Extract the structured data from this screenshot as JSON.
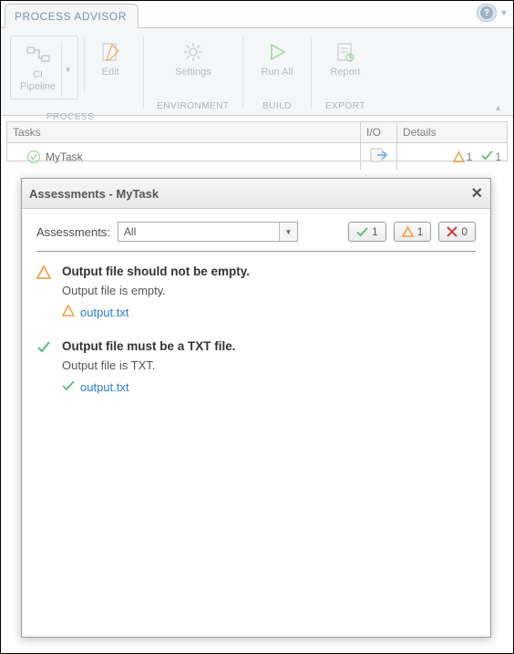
{
  "tab_title": "PROCESS ADVISOR",
  "ribbon": {
    "groups": {
      "process": {
        "label": "PROCESS",
        "ci_label": "CI\nPipeline",
        "edit": "Edit"
      },
      "environment": {
        "label": "ENVIRONMENT",
        "settings": "Settings"
      },
      "build": {
        "label": "BUILD",
        "runall": "Run All"
      },
      "export": {
        "label": "EXPORT",
        "report": "Report"
      }
    }
  },
  "columns": {
    "tasks": "Tasks",
    "io": "I/O",
    "details": "Details"
  },
  "task_row": {
    "name": "MyTask",
    "warn_count": "1",
    "pass_count": "1"
  },
  "modal": {
    "title": "Assessments - MyTask",
    "filter_label": "Assessments:",
    "filter_value": "All",
    "chip_pass": "1",
    "chip_warn": "1",
    "chip_fail": "0",
    "items": [
      {
        "status": "warn",
        "title": "Output file should not be empty.",
        "message": "Output file is empty.",
        "file": "output.txt"
      },
      {
        "status": "pass",
        "title": "Output file must be a TXT file.",
        "message": "Output file is TXT.",
        "file": "output.txt"
      }
    ]
  },
  "colors": {
    "pass": "#5fb878",
    "warn": "#f0a14b",
    "fail": "#cc3b3b",
    "link": "#2b7dcc"
  }
}
